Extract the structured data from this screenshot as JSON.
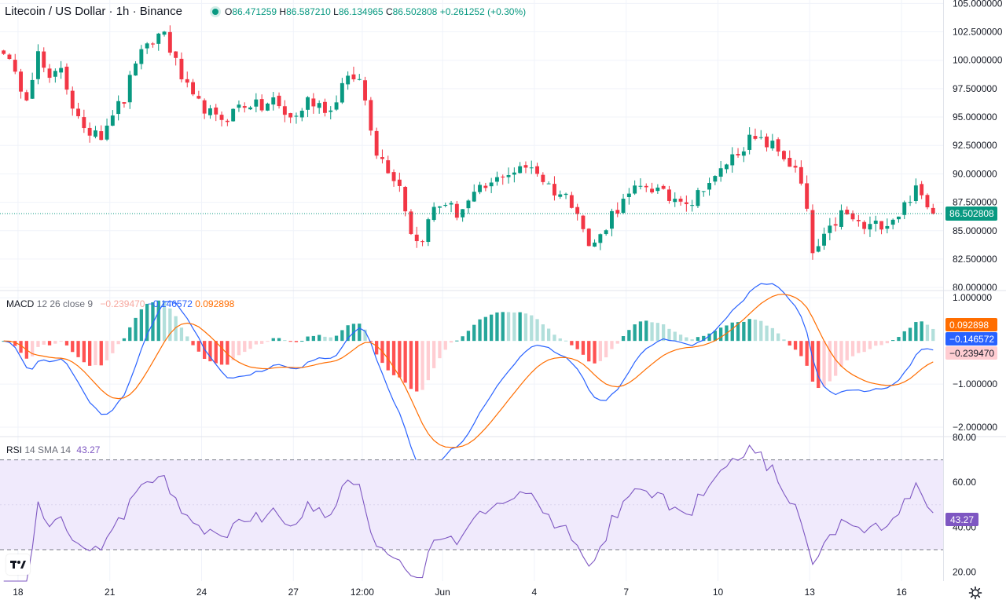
{
  "header": {
    "symbol_title": "Litecoin / US Dollar · 1h · Binance",
    "ohlc": {
      "open_label": "O",
      "open": "86.471259",
      "high_label": "H",
      "high": "86.587210",
      "low_label": "L",
      "low": "86.134965",
      "close_label": "C",
      "close": "86.502808",
      "change": "+0.261252 (+0.30%)"
    }
  },
  "macd_legend": {
    "name": "MACD",
    "params": "12 26 close 9",
    "hist": "−0.239470",
    "macd": "−0.146572",
    "signal": "0.092898"
  },
  "rsi_legend": {
    "name": "RSI",
    "params": "14 SMA 14",
    "value": "43.27"
  },
  "colors": {
    "up": "#089981",
    "down": "#f23645",
    "macd_line": "#2962ff",
    "signal_line": "#ff6d00",
    "rsi_line": "#7e57c2",
    "rsi_band": "#f0eafc"
  },
  "icons": {
    "logo": "tradingview-logo-icon",
    "settings": "gear-icon"
  },
  "chart_data": [
    {
      "type": "candlestick",
      "title": "Litecoin / US Dollar · 1h · Binance",
      "x_labels": [
        "18",
        "21",
        "24",
        "27",
        "12:00",
        "Jun",
        "4",
        "7",
        "10",
        "13",
        "16"
      ],
      "y_ticks": [
        105,
        102.5,
        100,
        97.5,
        95,
        92.5,
        90,
        87.5,
        85,
        82.5,
        80
      ],
      "y_tick_labels": [
        "105.000000",
        "102.500000",
        "100.000000",
        "97.500000",
        "95.000000",
        "92.500000",
        "90.000000",
        "87.500000",
        "85.000000",
        "82.500000",
        "80.000000"
      ],
      "ylim": [
        79.8,
        105.3
      ],
      "last_price": 86.502808,
      "last_price_label": "86.502808",
      "close_path": [
        [
          0,
          101
        ],
        [
          2,
          98.5
        ],
        [
          4,
          97
        ],
        [
          6,
          100.5
        ],
        [
          8,
          98
        ],
        [
          10,
          99.5
        ],
        [
          12,
          96
        ],
        [
          14,
          93.5
        ],
        [
          16,
          94
        ],
        [
          17,
          93.5
        ],
        [
          19,
          95.5
        ],
        [
          21,
          96.5
        ],
        [
          23,
          100
        ],
        [
          25,
          101
        ],
        [
          27,
          102.2
        ],
        [
          28,
          102.5
        ],
        [
          29,
          101
        ],
        [
          31,
          98.5
        ],
        [
          33,
          96.5
        ],
        [
          35,
          95.8
        ],
        [
          37,
          94.8
        ],
        [
          39,
          95
        ],
        [
          41,
          96
        ],
        [
          43,
          96.2
        ],
        [
          45,
          95.8
        ],
        [
          47,
          96.5
        ],
        [
          49,
          95.2
        ],
        [
          51,
          95
        ],
        [
          53,
          96.5
        ],
        [
          55,
          96.2
        ],
        [
          57,
          95.5
        ],
        [
          59,
          97.8
        ],
        [
          61,
          98.5
        ],
        [
          62,
          98.2
        ],
        [
          63,
          96.5
        ],
        [
          65,
          92
        ],
        [
          67,
          90.5
        ],
        [
          69,
          89
        ],
        [
          71,
          85
        ],
        [
          72,
          84
        ],
        [
          73,
          84.5
        ],
        [
          75,
          87
        ],
        [
          77,
          87.5
        ],
        [
          79,
          86.5
        ],
        [
          81,
          87.5
        ],
        [
          83,
          88.5
        ],
        [
          85,
          89
        ],
        [
          87,
          90
        ],
        [
          89,
          90.2
        ],
        [
          91,
          90.5
        ],
        [
          92,
          90.8
        ],
        [
          94,
          89.5
        ],
        [
          96,
          88.5
        ],
        [
          98,
          88
        ],
        [
          100,
          87
        ],
        [
          101,
          85.2
        ],
        [
          102,
          83.5
        ],
        [
          104,
          84.5
        ],
        [
          106,
          86.5
        ],
        [
          108,
          87.5
        ],
        [
          110,
          88.5
        ],
        [
          112,
          89
        ],
        [
          114,
          88.5
        ],
        [
          116,
          87.8
        ],
        [
          118,
          88
        ],
        [
          120,
          87.5
        ],
        [
          122,
          89
        ],
        [
          124,
          89.5
        ],
        [
          126,
          91
        ],
        [
          128,
          92
        ],
        [
          130,
          93
        ],
        [
          132,
          92.8
        ],
        [
          134,
          92.5
        ],
        [
          136,
          91.5
        ],
        [
          138,
          90.2
        ],
        [
          139,
          89
        ],
        [
          140,
          86.5
        ],
        [
          141,
          83
        ],
        [
          142,
          83.5
        ],
        [
          144,
          85
        ],
        [
          146,
          86.5
        ],
        [
          148,
          86
        ],
        [
          150,
          85.2
        ],
        [
          152,
          85.5
        ],
        [
          154,
          85.8
        ],
        [
          156,
          86.5
        ],
        [
          158,
          88
        ],
        [
          159,
          88.5
        ],
        [
          160,
          88
        ],
        [
          161,
          87
        ],
        [
          162,
          86.5
        ]
      ]
    },
    {
      "type": "line",
      "title": "MACD 12 26 close 9",
      "y_ticks": [
        1,
        -1,
        -2
      ],
      "y_tick_labels": [
        "1.000000",
        "−1.000000",
        "−2.000000"
      ],
      "ylim": [
        -2.2,
        1.15
      ],
      "series": [
        {
          "name": "MACD",
          "current": -0.146572
        },
        {
          "name": "Signal",
          "current": 0.092898
        },
        {
          "name": "Histogram",
          "current": -0.23947
        }
      ]
    },
    {
      "type": "line",
      "title": "RSI 14 SMA 14",
      "y_ticks": [
        80,
        60,
        40,
        20
      ],
      "y_tick_labels": [
        "80.00",
        "60.00",
        "40.00",
        "20.00"
      ],
      "ylim": [
        16,
        80
      ],
      "band": [
        30,
        70
      ],
      "current": 43.27,
      "current_label": "43.27"
    }
  ]
}
